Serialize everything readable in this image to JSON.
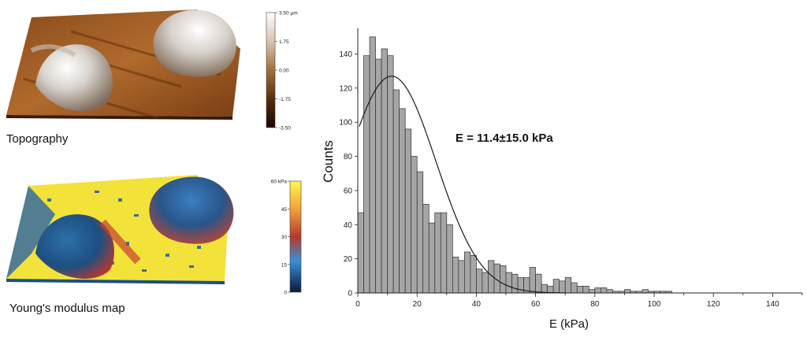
{
  "topography": {
    "caption": "Topography",
    "colorbar_ticks": [
      "3.50 µm",
      "1.75",
      "0.00",
      "-1.75",
      "-3.50"
    ],
    "colorbar_stops": [
      "#ffffff",
      "#d9c3b0",
      "#a0703e",
      "#5a2e0e",
      "#1a0500"
    ]
  },
  "modulus": {
    "caption": "Young's modulus map",
    "colorbar_ticks": [
      "60 kPa",
      "45",
      "30",
      "15",
      "0"
    ],
    "colorbar_stops": [
      "#fff64d",
      "#f2a43a",
      "#b8382c",
      "#3a8fd6",
      "#0a1a3a"
    ]
  },
  "chart_data": {
    "type": "bar",
    "xlabel": "E (kPa)",
    "ylabel": "Counts",
    "annotation": "E = 11.4±15.0 kPa",
    "xlim": [
      0,
      150
    ],
    "ylim": [
      0,
      155
    ],
    "xticks": [
      0,
      20,
      40,
      60,
      80,
      100,
      120,
      140
    ],
    "yticks": [
      0,
      20,
      40,
      60,
      80,
      100,
      120,
      140
    ],
    "bin_width": 2,
    "bin_start": 0,
    "values": [
      47,
      139,
      150,
      137,
      143,
      139,
      119,
      108,
      96,
      80,
      71,
      52,
      41,
      47,
      47,
      40,
      21,
      19,
      24,
      22,
      14,
      12,
      19,
      17,
      16,
      12,
      11,
      9,
      9,
      15,
      11,
      5,
      4,
      8,
      7,
      9,
      6,
      4,
      4,
      2,
      3,
      3,
      2,
      1,
      1,
      2,
      1,
      1,
      2,
      1,
      1,
      1,
      1,
      0,
      0,
      0,
      0,
      0,
      0,
      0,
      0,
      0,
      0,
      0,
      0,
      0,
      0,
      0,
      0,
      0,
      0,
      0,
      0,
      0,
      0
    ],
    "fit": {
      "type": "gaussian",
      "peak_x": 11.4,
      "peak_y": 127,
      "sigma": 15.0
    },
    "bar_color": "#a6a6a6",
    "edge_color": "#303030"
  }
}
